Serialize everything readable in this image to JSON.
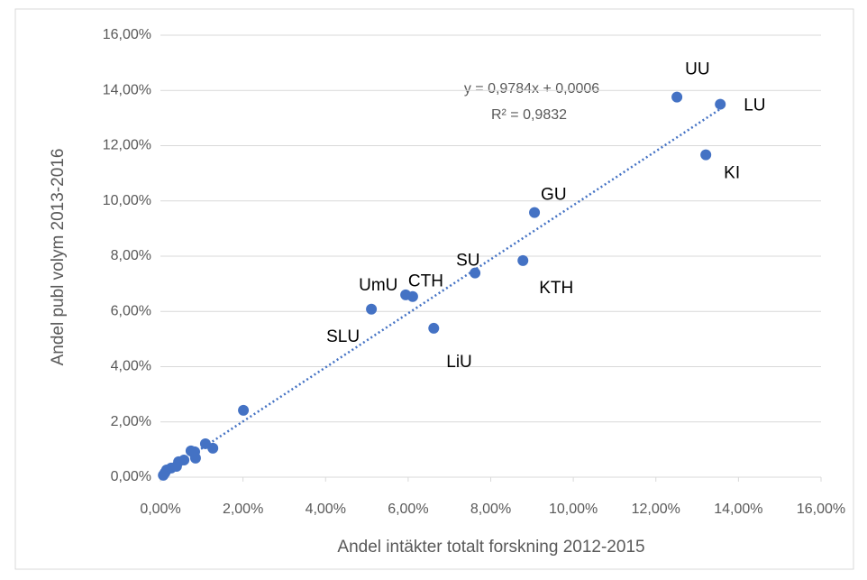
{
  "chart_data": {
    "type": "scatter",
    "x_label": "Andel intäkter totalt forskning 2012-2015",
    "y_label": "Andel publ volym 2013-2016",
    "color": "#4472c4",
    "grid": true,
    "x": [
      12.51,
      13.56,
      13.21,
      9.06,
      8.78,
      7.62,
      6.11,
      5.94,
      5.11,
      6.62,
      2.01,
      1.09,
      1.27,
      0.74,
      0.83,
      0.85,
      0.57,
      0.44,
      0.39,
      0.26,
      0.15,
      0.11,
      0.07
    ],
    "values": [
      13.76,
      13.5,
      11.67,
      9.58,
      7.84,
      7.39,
      6.54,
      6.6,
      6.08,
      5.39,
      2.42,
      1.21,
      1.05,
      0.95,
      0.92,
      0.69,
      0.62,
      0.56,
      0.39,
      0.33,
      0.26,
      0.16,
      0.07
    ],
    "labels": [
      "UU",
      "LU",
      "KI",
      "GU",
      "KTH",
      "SU",
      "CTH",
      "UmU",
      "SLU",
      "LiU",
      null,
      null,
      null,
      null,
      null,
      null,
      null,
      null,
      null,
      null,
      null,
      null,
      null
    ],
    "trendline": {
      "equation": "y = 0,9784x + 0,0006",
      "r_squared": "R² = 0,9832",
      "slope": 0.9784,
      "intercept": 0.06
    },
    "xlim": [
      0,
      16
    ],
    "ylim": [
      0,
      16
    ],
    "xticks": [
      {
        "value": 0,
        "label": "0,00%"
      },
      {
        "value": 2,
        "label": "2,00%"
      },
      {
        "value": 4,
        "label": "4,00%"
      },
      {
        "value": 6,
        "label": "6,00%"
      },
      {
        "value": 8,
        "label": "8,00%"
      },
      {
        "value": 10,
        "label": "10,00%"
      },
      {
        "value": 12,
        "label": "12,00%"
      },
      {
        "value": 14,
        "label": "14,00%"
      },
      {
        "value": 16,
        "label": "16,00%"
      }
    ],
    "yticks": [
      {
        "value": 0,
        "label": "0,00%"
      },
      {
        "value": 2,
        "label": "2,00%"
      },
      {
        "value": 4,
        "label": "4,00%"
      },
      {
        "value": 6,
        "label": "6,00%"
      },
      {
        "value": 8,
        "label": "8,00%"
      },
      {
        "value": 10,
        "label": "10,00%"
      },
      {
        "value": 12,
        "label": "12,00%"
      },
      {
        "value": 14,
        "label": "14,00%"
      },
      {
        "value": 16,
        "label": "16,00%"
      }
    ]
  }
}
